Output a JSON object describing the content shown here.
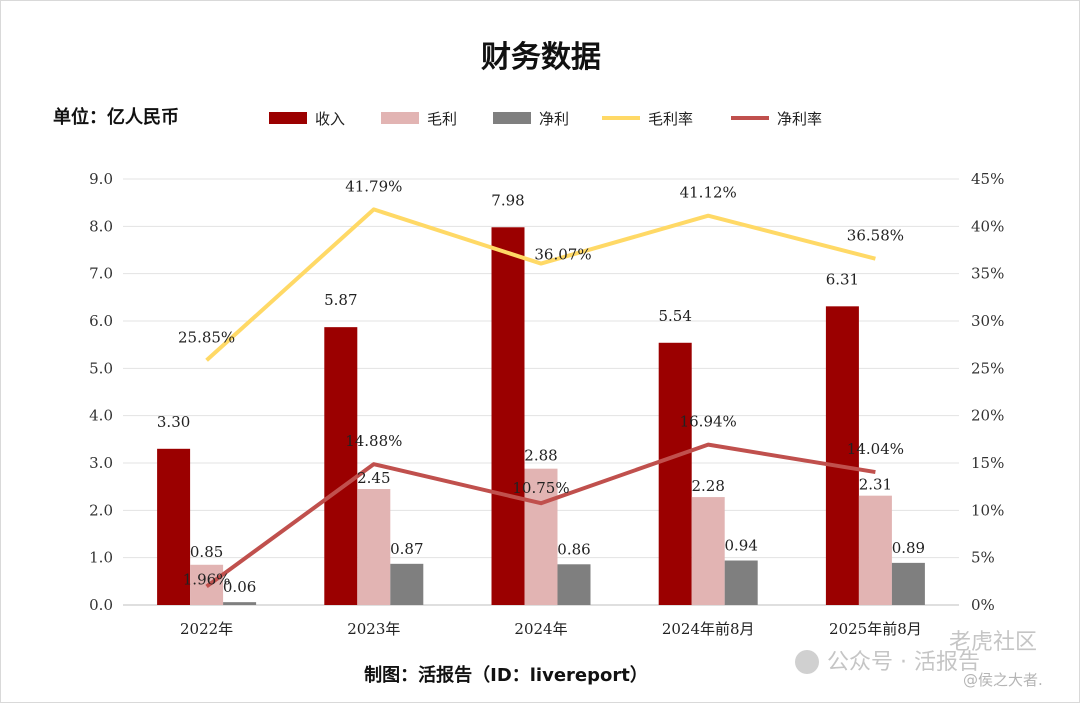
{
  "chart_data": {
    "type": "bar",
    "title": "财务数据",
    "unit_label": "单位：亿人民币",
    "categories": [
      "2022年",
      "2023年",
      "2024年",
      "2024年前8月",
      "2025年前8月"
    ],
    "y_left": {
      "min": 0,
      "max": 9,
      "step": 1,
      "tick_labels": [
        "0.0",
        "1.0",
        "2.0",
        "3.0",
        "4.0",
        "5.0",
        "6.0",
        "7.0",
        "8.0",
        "9.0"
      ]
    },
    "y_right": {
      "min": 0,
      "max": 45,
      "step": 5,
      "tick_labels": [
        "0%",
        "5%",
        "10%",
        "15%",
        "20%",
        "25%",
        "30%",
        "35%",
        "40%",
        "45%"
      ]
    },
    "series": [
      {
        "name": "收入",
        "kind": "bar",
        "color": "#9b0000",
        "values": [
          3.3,
          5.87,
          7.98,
          5.54,
          6.31
        ],
        "labels": [
          "3.30",
          "5.87",
          "7.98",
          "5.54",
          "6.31"
        ]
      },
      {
        "name": "毛利",
        "kind": "bar",
        "color": "#e2b4b3",
        "values": [
          0.85,
          2.45,
          2.88,
          2.28,
          2.31
        ],
        "labels": [
          "0.85",
          "2.45",
          "2.88",
          "2.28",
          "2.31"
        ]
      },
      {
        "name": "净利",
        "kind": "bar",
        "color": "#7f7f7f",
        "values": [
          0.06,
          0.87,
          0.86,
          0.94,
          0.89
        ],
        "labels": [
          "0.06",
          "0.87",
          "0.86",
          "0.94",
          "0.89"
        ]
      },
      {
        "name": "毛利率",
        "kind": "line",
        "axis": "right",
        "color": "#ffd966",
        "values": [
          25.85,
          41.79,
          36.07,
          41.12,
          36.58
        ],
        "labels": [
          "25.85%",
          "41.79%",
          "36.07%",
          "41.12%",
          "36.58%"
        ]
      },
      {
        "name": "净利率",
        "kind": "line",
        "axis": "right",
        "color": "#c0504d",
        "values": [
          1.96,
          14.88,
          10.75,
          16.94,
          14.04
        ],
        "labels": [
          "1.96%",
          "14.88%",
          "10.75%",
          "16.94%",
          "14.04%"
        ]
      }
    ],
    "legend_position": "top",
    "grid": true
  },
  "credit": "制图：活报告（ID：livereport）",
  "watermark": {
    "line1": "老虎社区",
    "line2": "公众号 · 活报告",
    "line3": "@侯之大者."
  }
}
